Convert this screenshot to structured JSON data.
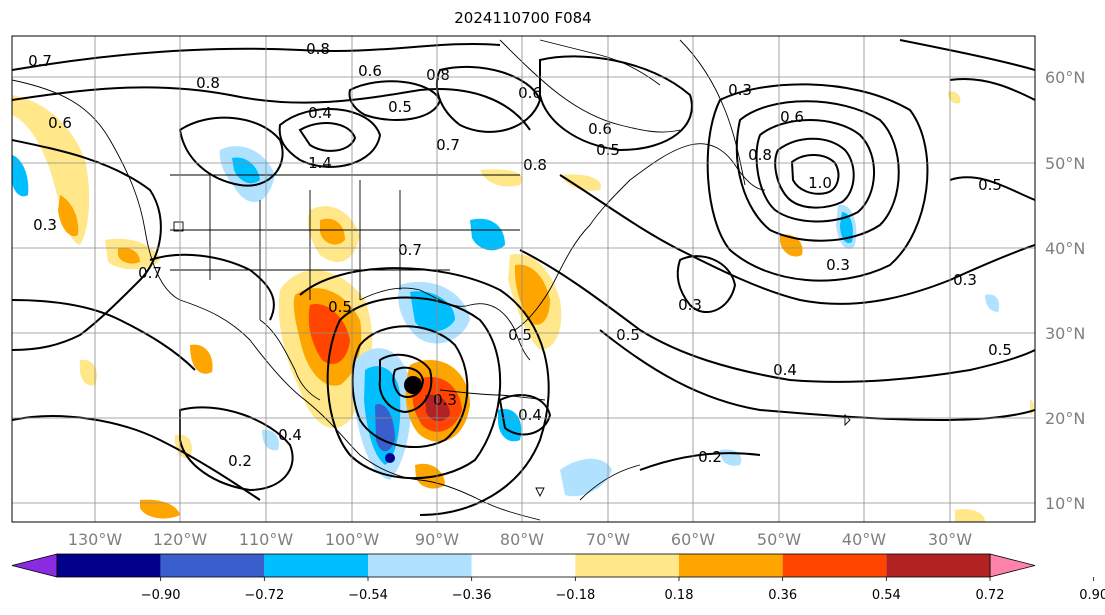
{
  "title": "2024110700 F084",
  "lat_labels": [
    "60°N",
    "50°N",
    "40°N",
    "30°N",
    "20°N",
    "10°N"
  ],
  "lon_labels": [
    "130°W",
    "120°W",
    "110°W",
    "100°W",
    "90°W",
    "80°W",
    "70°W",
    "60°W",
    "50°W",
    "40°W",
    "30°W"
  ],
  "colorbar": {
    "ticks": [
      "−0.90",
      "−0.72",
      "−0.54",
      "−0.36",
      "−0.18",
      "0.18",
      "0.36",
      "0.54",
      "0.72",
      "0.90"
    ],
    "colors": [
      "#8a2be2",
      "#00008b",
      "#3a5fcd",
      "#00bfff",
      "#b0e2ff",
      "#ffffff",
      "#ffe78a",
      "#ffa500",
      "#ff4500",
      "#b22222",
      "#ff82ab"
    ]
  },
  "contour_labels": [
    "0.7",
    "0.8",
    "0.8",
    "0.6",
    "0.8",
    "0.7",
    "0.6",
    "0.4",
    "0.6",
    "0.8",
    "1.4",
    "0.7",
    "0.5",
    "0.8",
    "0.5",
    "0.6",
    "1.0",
    "0.3",
    "0.6",
    "0.3",
    "0.7",
    "0.5",
    "0.3",
    "0.5",
    "0.3",
    "0.5",
    "0.4",
    "0.5",
    "0.3",
    "0.3",
    "0.4",
    "0.2",
    "0.4",
    "0.2",
    "0.5"
  ]
}
